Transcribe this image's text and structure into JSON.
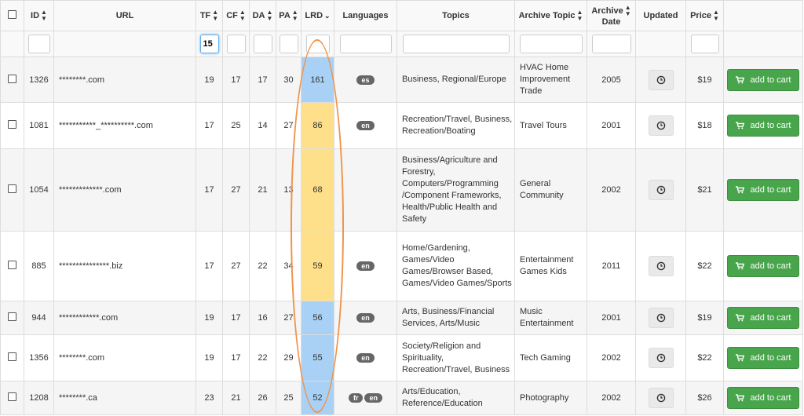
{
  "headers": {
    "id": "ID",
    "url": "URL",
    "tf": "TF",
    "cf": "CF",
    "da": "DA",
    "pa": "PA",
    "lrd": "LRD",
    "languages": "Languages",
    "topics": "Topics",
    "archive_topic": "Archive Topic",
    "archive_date_line1": "Archive",
    "archive_date_line2": "Date",
    "updated": "Updated",
    "price": "Price"
  },
  "filters": {
    "tf_value": "15"
  },
  "add_to_cart_label": "add to cart",
  "rows": [
    {
      "id": "1326",
      "url": "********.com",
      "tf": "19",
      "cf": "17",
      "da": "17",
      "pa": "30",
      "lrd": "161",
      "lrd_color": "#a8d1f5",
      "languages": [
        "es"
      ],
      "topics": "Business, Regional/Europe",
      "archive_topic": "HVAC Home Improvement Trade",
      "archive_date": "2005",
      "price": "$19"
    },
    {
      "id": "1081",
      "url": "***********_**********.com",
      "tf": "17",
      "cf": "25",
      "da": "14",
      "pa": "27",
      "lrd": "86",
      "lrd_color": "#ffe08a",
      "languages": [
        "en"
      ],
      "topics": "Recreation/Travel, Business, Recreation/Boating",
      "archive_topic": "Travel Tours",
      "archive_date": "2001",
      "price": "$18"
    },
    {
      "id": "1054",
      "url": "*************.com",
      "tf": "17",
      "cf": "27",
      "da": "21",
      "pa": "13",
      "lrd": "68",
      "lrd_color": "#ffe08a",
      "languages": [],
      "topics": "Business/Agriculture and Forestry, Computers/Programming /Component Frameworks, Health/Public Health and Safety",
      "archive_topic": "General Community",
      "archive_date": "2002",
      "price": "$21"
    },
    {
      "id": "885",
      "url": "***************.biz",
      "tf": "17",
      "cf": "27",
      "da": "22",
      "pa": "34",
      "lrd": "59",
      "lrd_color": "#ffe08a",
      "languages": [
        "en"
      ],
      "topics": "Home/Gardening, Games/Video Games/Browser Based, Games/Video Games/Sports",
      "archive_topic": "Entertainment Games Kids",
      "archive_date": "2011",
      "price": "$22"
    },
    {
      "id": "944",
      "url": "************.com",
      "tf": "19",
      "cf": "17",
      "da": "16",
      "pa": "27",
      "lrd": "56",
      "lrd_color": "#a8d1f5",
      "languages": [
        "en"
      ],
      "topics": "Arts, Business/Financial Services, Arts/Music",
      "archive_topic": "Music Entertainment",
      "archive_date": "2001",
      "price": "$19"
    },
    {
      "id": "1356",
      "url": "********.com",
      "tf": "19",
      "cf": "17",
      "da": "22",
      "pa": "29",
      "lrd": "55",
      "lrd_color": "#a8d1f5",
      "languages": [
        "en"
      ],
      "topics": "Society/Religion and Spirituality, Recreation/Travel, Business",
      "archive_topic": "Tech Gaming",
      "archive_date": "2002",
      "price": "$22"
    },
    {
      "id": "1208",
      "url": "********.ca",
      "tf": "23",
      "cf": "21",
      "da": "26",
      "pa": "25",
      "lrd": "52",
      "lrd_color": "#a8d1f5",
      "languages": [
        "fr",
        "en"
      ],
      "topics": "Arts/Education, Reference/Education",
      "archive_topic": "Photography",
      "archive_date": "2002",
      "price": "$26"
    }
  ],
  "icons": {
    "sort": "sort-updown-icon",
    "sort_active": "sort-desc-icon",
    "updated": "clock-icon",
    "cart": "shopping-cart-icon"
  },
  "colors": {
    "lrd_blue": "#a8d1f5",
    "lrd_yellow": "#ffe08a",
    "cart_green": "#48a54b",
    "annotation_oval": "#f0934a"
  }
}
